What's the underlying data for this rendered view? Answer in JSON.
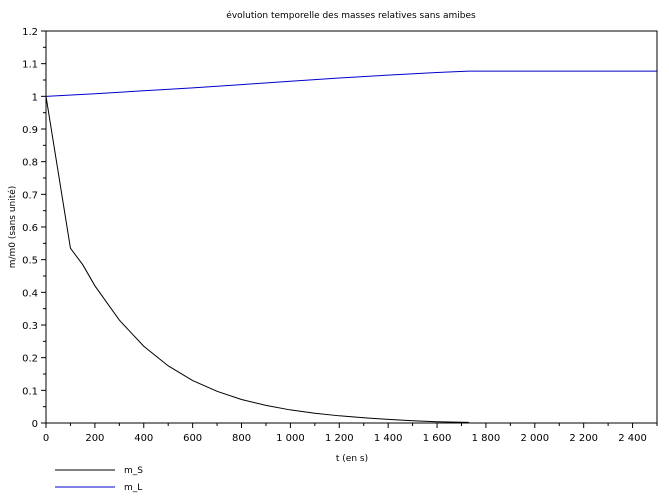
{
  "chart_data": {
    "type": "line",
    "title": "évolution temporelle des masses relatives sans amibes",
    "xlabel": "t (en s)",
    "ylabel": "m/m0 (sans unité)",
    "xlim": [
      0,
      2500
    ],
    "ylim": [
      0,
      1.2
    ],
    "x_ticks": [
      0,
      200,
      400,
      600,
      800,
      1000,
      1200,
      1400,
      1600,
      1800,
      2000,
      2200,
      2400
    ],
    "x_tick_labels": [
      "0",
      "200",
      "400",
      "600",
      "800",
      "1 000",
      "1 200",
      "1 400",
      "1 600",
      "1 800",
      "2 000",
      "2 200",
      "2 400"
    ],
    "y_ticks": [
      0,
      0.1,
      0.2,
      0.3,
      0.4,
      0.5,
      0.6,
      0.7,
      0.8,
      0.9,
      1,
      1.1,
      1.2
    ],
    "y_tick_labels": [
      "0",
      "0.1",
      "0.2",
      "0.3",
      "0.4",
      "0.5",
      "0.6",
      "0.7",
      "0.8",
      "0.9",
      "1",
      "1.1",
      "1.2"
    ],
    "grid": false,
    "legend_position": "bottom-left",
    "series": [
      {
        "name": "m_S",
        "color": "#000000",
        "x": [
          0,
          100,
          150,
          200,
          300,
          400,
          500,
          600,
          700,
          800,
          900,
          1000,
          1100,
          1200,
          1300,
          1400,
          1500,
          1600,
          1730
        ],
        "y": [
          1.0,
          0.535,
          0.485,
          0.42,
          0.315,
          0.235,
          0.175,
          0.13,
          0.097,
          0.072,
          0.054,
          0.04,
          0.03,
          0.022,
          0.016,
          0.011,
          0.007,
          0.004,
          0.002
        ]
      },
      {
        "name": "m_L",
        "color": "#0000cc",
        "x": [
          0,
          200,
          400,
          600,
          800,
          1000,
          1200,
          1400,
          1600,
          1730,
          1800,
          2000,
          2200,
          2400,
          2500
        ],
        "y": [
          1.0,
          1.008,
          1.017,
          1.026,
          1.036,
          1.046,
          1.056,
          1.065,
          1.073,
          1.077,
          1.077,
          1.077,
          1.077,
          1.077,
          1.077
        ]
      }
    ]
  }
}
